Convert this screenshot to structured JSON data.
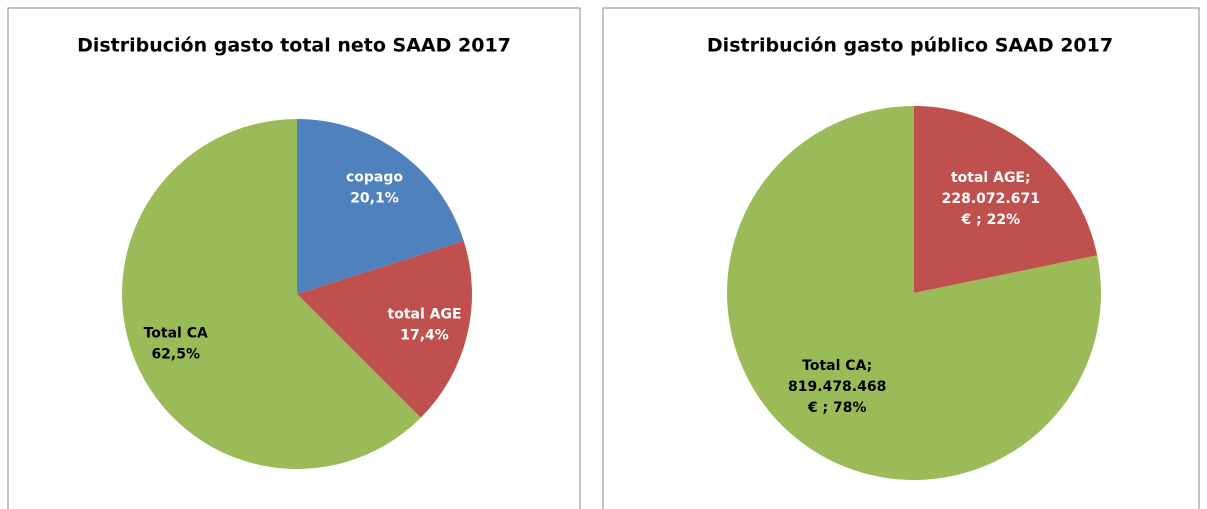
{
  "chart_data": [
    {
      "type": "pie",
      "title": "Distribución gasto total neto SAAD 2017",
      "categories": [
        "copago",
        "total AGE",
        "Total CA"
      ],
      "values": [
        20.1,
        17.4,
        62.5
      ],
      "value_labels": [
        [
          "20,1%"
        ],
        [
          "17,4%"
        ],
        [
          "62,5%"
        ]
      ],
      "colors": [
        "#4f81bd",
        "#c0504d",
        "#9bbb59"
      ],
      "label_colors": [
        "#ffffff",
        "#ffffff",
        "#000000"
      ]
    },
    {
      "type": "pie",
      "title": "Distribución gasto público SAAD 2017",
      "categories": [
        "total AGE;",
        "Total CA;"
      ],
      "values": [
        228072671,
        819478468
      ],
      "value_labels": [
        [
          "228.072.671",
          "€ ; 22%"
        ],
        [
          "819.478.468",
          "€ ; 78%"
        ]
      ],
      "colors": [
        "#c0504d",
        "#9bbb59"
      ],
      "label_colors": [
        "#ffffff",
        "#000000"
      ]
    }
  ]
}
